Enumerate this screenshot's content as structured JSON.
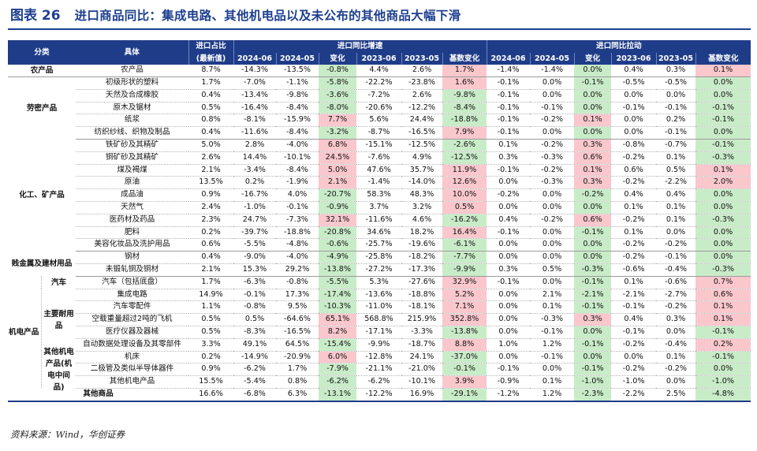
{
  "title": {
    "figure": "图表 26",
    "text": "进口商品同比：集成电路、其他机电品以及未公布的其他商品大幅下滑"
  },
  "header": {
    "col_category": "分类",
    "col_item": "具体",
    "col_share": "进口占比",
    "col_share_sub": "(最新值)",
    "group_yoy": "进口同比增速",
    "group_contrib": "进口同比拉动",
    "sub_cols": [
      "2024-06",
      "2024-05",
      "变化",
      "2023-06",
      "2023-05",
      "基数变化"
    ]
  },
  "colors": {
    "header_bg": "#1f3c88",
    "title": "#1d3f8f",
    "positive": "#f9c7cc",
    "negative": "#c9ecc8"
  },
  "categories": {
    "agri": "农产品",
    "labor": "劳密产品",
    "chem": "化工、矿产品",
    "metal": "贱金属及建材用品",
    "mech": "机电产品",
    "auto": "汽车",
    "main_mech": "主要耐用品",
    "other_mech": "其他机电产品(机电中间品)",
    "other_goods": "其他商品"
  },
  "rows": [
    {
      "item": "农产品",
      "v": [
        "8.7%",
        "-14.3%",
        "-13.5%",
        "-0.8%",
        "4.4%",
        "2.6%",
        "1.7%",
        "-1.4%",
        "-1.4%",
        "0.0%",
        "0.4%",
        "0.3%",
        "0.1%"
      ]
    },
    {
      "item": "初级形状的塑料",
      "v": [
        "1.7%",
        "-7.0%",
        "-1.1%",
        "-5.8%",
        "-22.2%",
        "-23.8%",
        "1.6%",
        "-0.1%",
        "0.0%",
        "-0.1%",
        "-0.5%",
        "-0.5%",
        "0.0%"
      ]
    },
    {
      "item": "天然及合成橡胶",
      "v": [
        "0.4%",
        "-13.4%",
        "-9.8%",
        "-3.6%",
        "-7.2%",
        "2.6%",
        "-9.8%",
        "-0.1%",
        "0.0%",
        "0.0%",
        "0.0%",
        "0.0%",
        "0.0%"
      ]
    },
    {
      "item": "原木及锯材",
      "v": [
        "0.5%",
        "-16.4%",
        "-8.4%",
        "-8.0%",
        "-20.6%",
        "-12.2%",
        "-8.4%",
        "-0.1%",
        "-0.1%",
        "0.0%",
        "-0.1%",
        "-0.1%",
        "-0.1%"
      ]
    },
    {
      "item": "纸浆",
      "v": [
        "0.8%",
        "-8.1%",
        "-15.9%",
        "7.7%",
        "5.6%",
        "24.4%",
        "-18.8%",
        "-0.1%",
        "-0.2%",
        "0.1%",
        "0.0%",
        "0.2%",
        "-0.1%"
      ]
    },
    {
      "item": "纺织纱线、织物及制品",
      "v": [
        "0.4%",
        "-11.6%",
        "-8.4%",
        "-3.2%",
        "-8.7%",
        "-16.5%",
        "7.9%",
        "-0.1%",
        "0.0%",
        "0.0%",
        "0.0%",
        "-0.1%",
        "0.0%"
      ]
    },
    {
      "item": "铁矿砂及其精矿",
      "v": [
        "5.0%",
        "2.8%",
        "-4.0%",
        "6.8%",
        "-15.1%",
        "-12.5%",
        "-2.6%",
        "0.1%",
        "-0.2%",
        "0.3%",
        "-0.8%",
        "-0.7%",
        "-0.1%"
      ]
    },
    {
      "item": "铜矿砂及其精矿",
      "v": [
        "2.6%",
        "14.4%",
        "-10.1%",
        "24.5%",
        "-7.6%",
        "4.9%",
        "-12.5%",
        "0.3%",
        "-0.3%",
        "0.6%",
        "-0.2%",
        "0.1%",
        "-0.3%"
      ]
    },
    {
      "item": "煤及褐煤",
      "v": [
        "2.1%",
        "-3.4%",
        "-8.4%",
        "5.0%",
        "47.6%",
        "35.7%",
        "11.9%",
        "-0.1%",
        "-0.2%",
        "0.1%",
        "0.6%",
        "0.5%",
        "0.1%"
      ]
    },
    {
      "item": "原油",
      "v": [
        "13.5%",
        "0.2%",
        "-1.9%",
        "2.1%",
        "-1.4%",
        "-14.0%",
        "12.6%",
        "0.0%",
        "-0.3%",
        "0.3%",
        "-0.2%",
        "-2.2%",
        "2.0%"
      ]
    },
    {
      "item": "成品油",
      "v": [
        "0.9%",
        "-16.7%",
        "4.0%",
        "-20.7%",
        "58.3%",
        "48.3%",
        "10.0%",
        "-0.2%",
        "0.0%",
        "-0.2%",
        "0.4%",
        "0.4%",
        "0.0%"
      ]
    },
    {
      "item": "天然气",
      "v": [
        "2.4%",
        "-1.0%",
        "-0.1%",
        "-0.9%",
        "3.7%",
        "3.2%",
        "0.5%",
        "0.0%",
        "0.0%",
        "0.0%",
        "0.1%",
        "0.1%",
        "0.0%"
      ]
    },
    {
      "item": "医药材及药品",
      "v": [
        "2.3%",
        "24.7%",
        "-7.3%",
        "32.1%",
        "-11.6%",
        "4.6%",
        "-16.2%",
        "0.4%",
        "-0.2%",
        "0.6%",
        "-0.2%",
        "0.1%",
        "-0.3%"
      ]
    },
    {
      "item": "肥料",
      "v": [
        "0.2%",
        "-39.7%",
        "-18.8%",
        "-20.8%",
        "34.6%",
        "18.2%",
        "16.4%",
        "-0.1%",
        "0.0%",
        "-0.1%",
        "0.1%",
        "0.0%",
        "0.0%"
      ]
    },
    {
      "item": "美容化妆品及洗护用品",
      "v": [
        "0.6%",
        "-5.5%",
        "-4.8%",
        "-0.6%",
        "-25.7%",
        "-19.6%",
        "-6.1%",
        "0.0%",
        "0.0%",
        "0.0%",
        "-0.2%",
        "-0.2%",
        "0.0%"
      ]
    },
    {
      "item": "钢材",
      "v": [
        "0.4%",
        "-9.0%",
        "-4.0%",
        "-4.9%",
        "-25.8%",
        "-18.2%",
        "-7.7%",
        "0.0%",
        "0.0%",
        "0.0%",
        "-0.2%",
        "-0.1%",
        "0.0%"
      ]
    },
    {
      "item": "未锻轧铜及铜材",
      "v": [
        "2.1%",
        "15.3%",
        "29.2%",
        "-13.8%",
        "-27.2%",
        "-17.3%",
        "-9.9%",
        "0.3%",
        "0.5%",
        "-0.3%",
        "-0.6%",
        "-0.4%",
        "-0.3%"
      ]
    },
    {
      "item": "汽车（包括底盘）",
      "v": [
        "1.7%",
        "-6.3%",
        "-0.8%",
        "-5.5%",
        "5.3%",
        "-27.6%",
        "32.9%",
        "-0.1%",
        "0.0%",
        "-0.1%",
        "0.1%",
        "-0.6%",
        "0.7%"
      ]
    },
    {
      "item": "集成电路",
      "v": [
        "14.9%",
        "-0.1%",
        "17.3%",
        "-17.4%",
        "-13.6%",
        "-18.8%",
        "5.2%",
        "0.0%",
        "2.1%",
        "-2.1%",
        "-2.1%",
        "-2.7%",
        "0.6%"
      ]
    },
    {
      "item": "汽车零配件",
      "v": [
        "1.1%",
        "-0.8%",
        "9.5%",
        "-10.3%",
        "-11.0%",
        "-18.1%",
        "7.1%",
        "0.0%",
        "0.1%",
        "-0.1%",
        "-0.1%",
        "-0.2%",
        "0.1%"
      ]
    },
    {
      "item": "空载重量超过2吨的飞机",
      "v": [
        "0.5%",
        "0.5%",
        "-64.6%",
        "65.1%",
        "568.8%",
        "215.9%",
        "352.8%",
        "0.0%",
        "-0.3%",
        "0.3%",
        "0.4%",
        "0.3%",
        "0.1%"
      ]
    },
    {
      "item": "医疗仪器及器械",
      "v": [
        "0.5%",
        "-8.3%",
        "-16.5%",
        "8.2%",
        "-17.1%",
        "-3.3%",
        "-13.8%",
        "0.0%",
        "-0.1%",
        "0.0%",
        "-0.1%",
        "0.0%",
        "-0.1%"
      ]
    },
    {
      "item": "自动数据处理设备及其零部件",
      "v": [
        "3.3%",
        "49.1%",
        "64.5%",
        "-15.4%",
        "-9.9%",
        "-18.7%",
        "8.8%",
        "1.0%",
        "1.2%",
        "-0.1%",
        "-0.2%",
        "-0.4%",
        "0.2%"
      ]
    },
    {
      "item": "机床",
      "v": [
        "0.2%",
        "-14.9%",
        "-20.9%",
        "6.0%",
        "-12.8%",
        "24.1%",
        "-37.0%",
        "0.0%",
        "-0.1%",
        "0.0%",
        "0.0%",
        "0.1%",
        "-0.1%"
      ]
    },
    {
      "item": "二极管及类似半导体器件",
      "v": [
        "0.9%",
        "-6.2%",
        "1.7%",
        "-7.9%",
        "-21.1%",
        "-21.0%",
        "-0.1%",
        "-0.1%",
        "0.0%",
        "-0.1%",
        "-0.2%",
        "-0.2%",
        "0.0%"
      ]
    },
    {
      "item": "其他机电产品",
      "v": [
        "15.5%",
        "-5.4%",
        "0.8%",
        "-6.2%",
        "-6.2%",
        "-10.1%",
        "3.9%",
        "-0.9%",
        "0.1%",
        "-1.0%",
        "-1.0%",
        "0.0%",
        "-1.0%"
      ]
    },
    {
      "item": "",
      "v": [
        "16.6%",
        "-6.8%",
        "6.3%",
        "-13.1%",
        "-12.2%",
        "16.9%",
        "-29.1%",
        "-1.2%",
        "1.2%",
        "-2.3%",
        "-2.2%",
        "2.5%",
        "-4.8%"
      ]
    }
  ],
  "source": "资料来源：Wind，华创证券"
}
